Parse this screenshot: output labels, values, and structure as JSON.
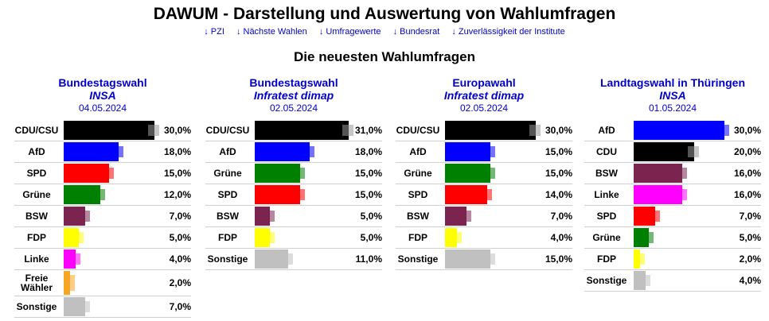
{
  "header": {
    "title": "DAWUM - Darstellung und Auswertung von Wahlumfragen",
    "nav": [
      "↓ PZI",
      "↓ Nächste Wahlen",
      "↓ Umfragewerte",
      "↓ Bundesrat",
      "↓ Zuverlässigkeit der Institute"
    ],
    "section_title": "Die neuesten Wahlumfragen"
  },
  "colors": {
    "CDU/CSU": "#000000",
    "CDU": "#000000",
    "AfD": "#0000ff",
    "SPD": "#ff0000",
    "Grüne": "#008000",
    "BSW": "#7b2450",
    "FDP": "#ffff00",
    "Linke": "#ff00ff",
    "Freie Wähler": "#f5a623",
    "Sonstige": "#c0c0c0"
  },
  "chart_data": [
    {
      "type": "bar",
      "title": "Bundestagswahl",
      "institute": "INSA",
      "date": "04.05.2024",
      "categories": [
        "CDU/CSU",
        "AfD",
        "SPD",
        "Grüne",
        "BSW",
        "FDP",
        "Linke",
        "Freie Wähler",
        "Sonstige"
      ],
      "values": [
        30.0,
        18.0,
        15.0,
        12.0,
        7.0,
        5.0,
        4.0,
        2.0,
        7.0
      ],
      "labels": [
        "30,0%",
        "18,0%",
        "15,0%",
        "12,0%",
        "7,0%",
        "5,0%",
        "4,0%",
        "2,0%",
        "7,0%"
      ],
      "xlim": [
        0,
        31
      ]
    },
    {
      "type": "bar",
      "title": "Bundestagswahl",
      "institute": "Infratest dimap",
      "date": "02.05.2024",
      "categories": [
        "CDU/CSU",
        "AfD",
        "Grüne",
        "SPD",
        "BSW",
        "FDP",
        "Sonstige"
      ],
      "values": [
        31.0,
        18.0,
        15.0,
        15.0,
        5.0,
        5.0,
        11.0
      ],
      "labels": [
        "31,0%",
        "18,0%",
        "15,0%",
        "15,0%",
        "5,0%",
        "5,0%",
        "11,0%"
      ],
      "xlim": [
        0,
        31
      ]
    },
    {
      "type": "bar",
      "title": "Europawahl",
      "institute": "Infratest dimap",
      "date": "02.05.2024",
      "categories": [
        "CDU/CSU",
        "AfD",
        "Grüne",
        "SPD",
        "BSW",
        "FDP",
        "Sonstige"
      ],
      "values": [
        30.0,
        15.0,
        15.0,
        14.0,
        7.0,
        4.0,
        15.0
      ],
      "labels": [
        "30,0%",
        "15,0%",
        "15,0%",
        "14,0%",
        "7,0%",
        "4,0%",
        "15,0%"
      ],
      "xlim": [
        0,
        31
      ]
    },
    {
      "type": "bar",
      "title": "Landtagswahl in Thüringen",
      "institute": "INSA",
      "date": "01.05.2024",
      "categories": [
        "AfD",
        "CDU",
        "BSW",
        "Linke",
        "SPD",
        "Grüne",
        "FDP",
        "Sonstige"
      ],
      "values": [
        30.0,
        20.0,
        16.0,
        16.0,
        7.0,
        5.0,
        2.0,
        4.0
      ],
      "labels": [
        "30,0%",
        "20,0%",
        "16,0%",
        "16,0%",
        "7,0%",
        "5,0%",
        "2,0%",
        "4,0%"
      ],
      "xlim": [
        0,
        31
      ]
    }
  ]
}
